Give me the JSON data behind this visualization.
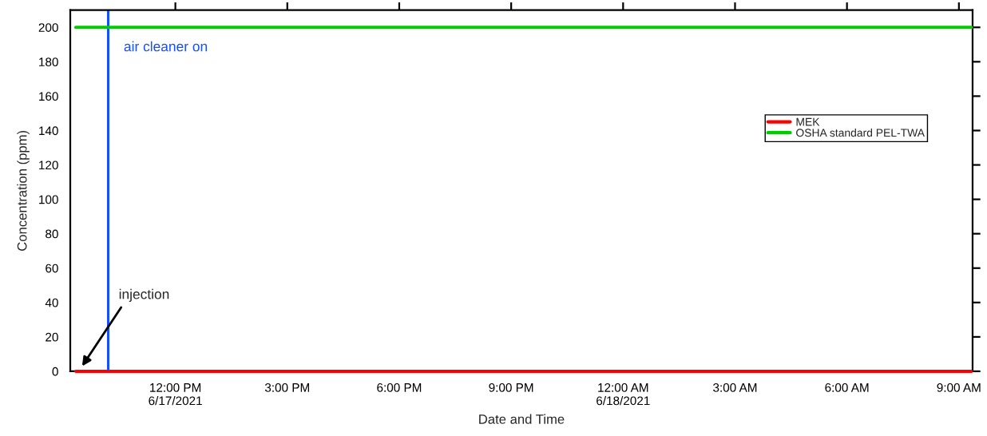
{
  "chart_data": {
    "type": "line",
    "xlabel": "Date and Time",
    "ylabel": "Concentration (ppm)",
    "series": [
      {
        "name": "MEK",
        "color": "#ff0000",
        "x": [
          "2021-06-17T09:20",
          "2021-06-18T09:20"
        ],
        "values": [
          0,
          0
        ]
      },
      {
        "name": "OSHA standard PEL-TWA",
        "color": "#00cc00",
        "x": [
          "2021-06-17T09:20",
          "2021-06-18T09:20"
        ],
        "values": [
          200,
          200
        ]
      }
    ],
    "xlim": [
      "2021-06-17T09:11",
      "2021-06-18T09:22"
    ],
    "xticks": [
      {
        "value": "2021-06-17T12:00",
        "label": "12:00 PM\n6/17/2021"
      },
      {
        "value": "2021-06-17T15:00",
        "label": "3:00 PM"
      },
      {
        "value": "2021-06-17T18:00",
        "label": "6:00 PM"
      },
      {
        "value": "2021-06-17T21:00",
        "label": "9:00 PM"
      },
      {
        "value": "2021-06-18T00:00",
        "label": "12:00 AM\n6/18/2021"
      },
      {
        "value": "2021-06-18T03:00",
        "label": "3:00 AM"
      },
      {
        "value": "2021-06-18T06:00",
        "label": "6:00 AM"
      },
      {
        "value": "2021-06-18T09:00",
        "label": "9:00 AM"
      }
    ],
    "ylim": [
      0,
      210
    ],
    "yticks": [
      0,
      20,
      40,
      60,
      80,
      100,
      120,
      140,
      160,
      180,
      200
    ],
    "ref_lines": [
      {
        "axis": "x",
        "value": "2021-06-17T10:12",
        "label": "air cleaner on",
        "color": "#1450ff",
        "line_style": "solid"
      }
    ],
    "annotations": [
      {
        "text": "injection",
        "x": "2021-06-17T09:30",
        "y": 3
      }
    ],
    "grid": false,
    "legend": "top right",
    "marker": "none",
    "line_style": "solid"
  }
}
